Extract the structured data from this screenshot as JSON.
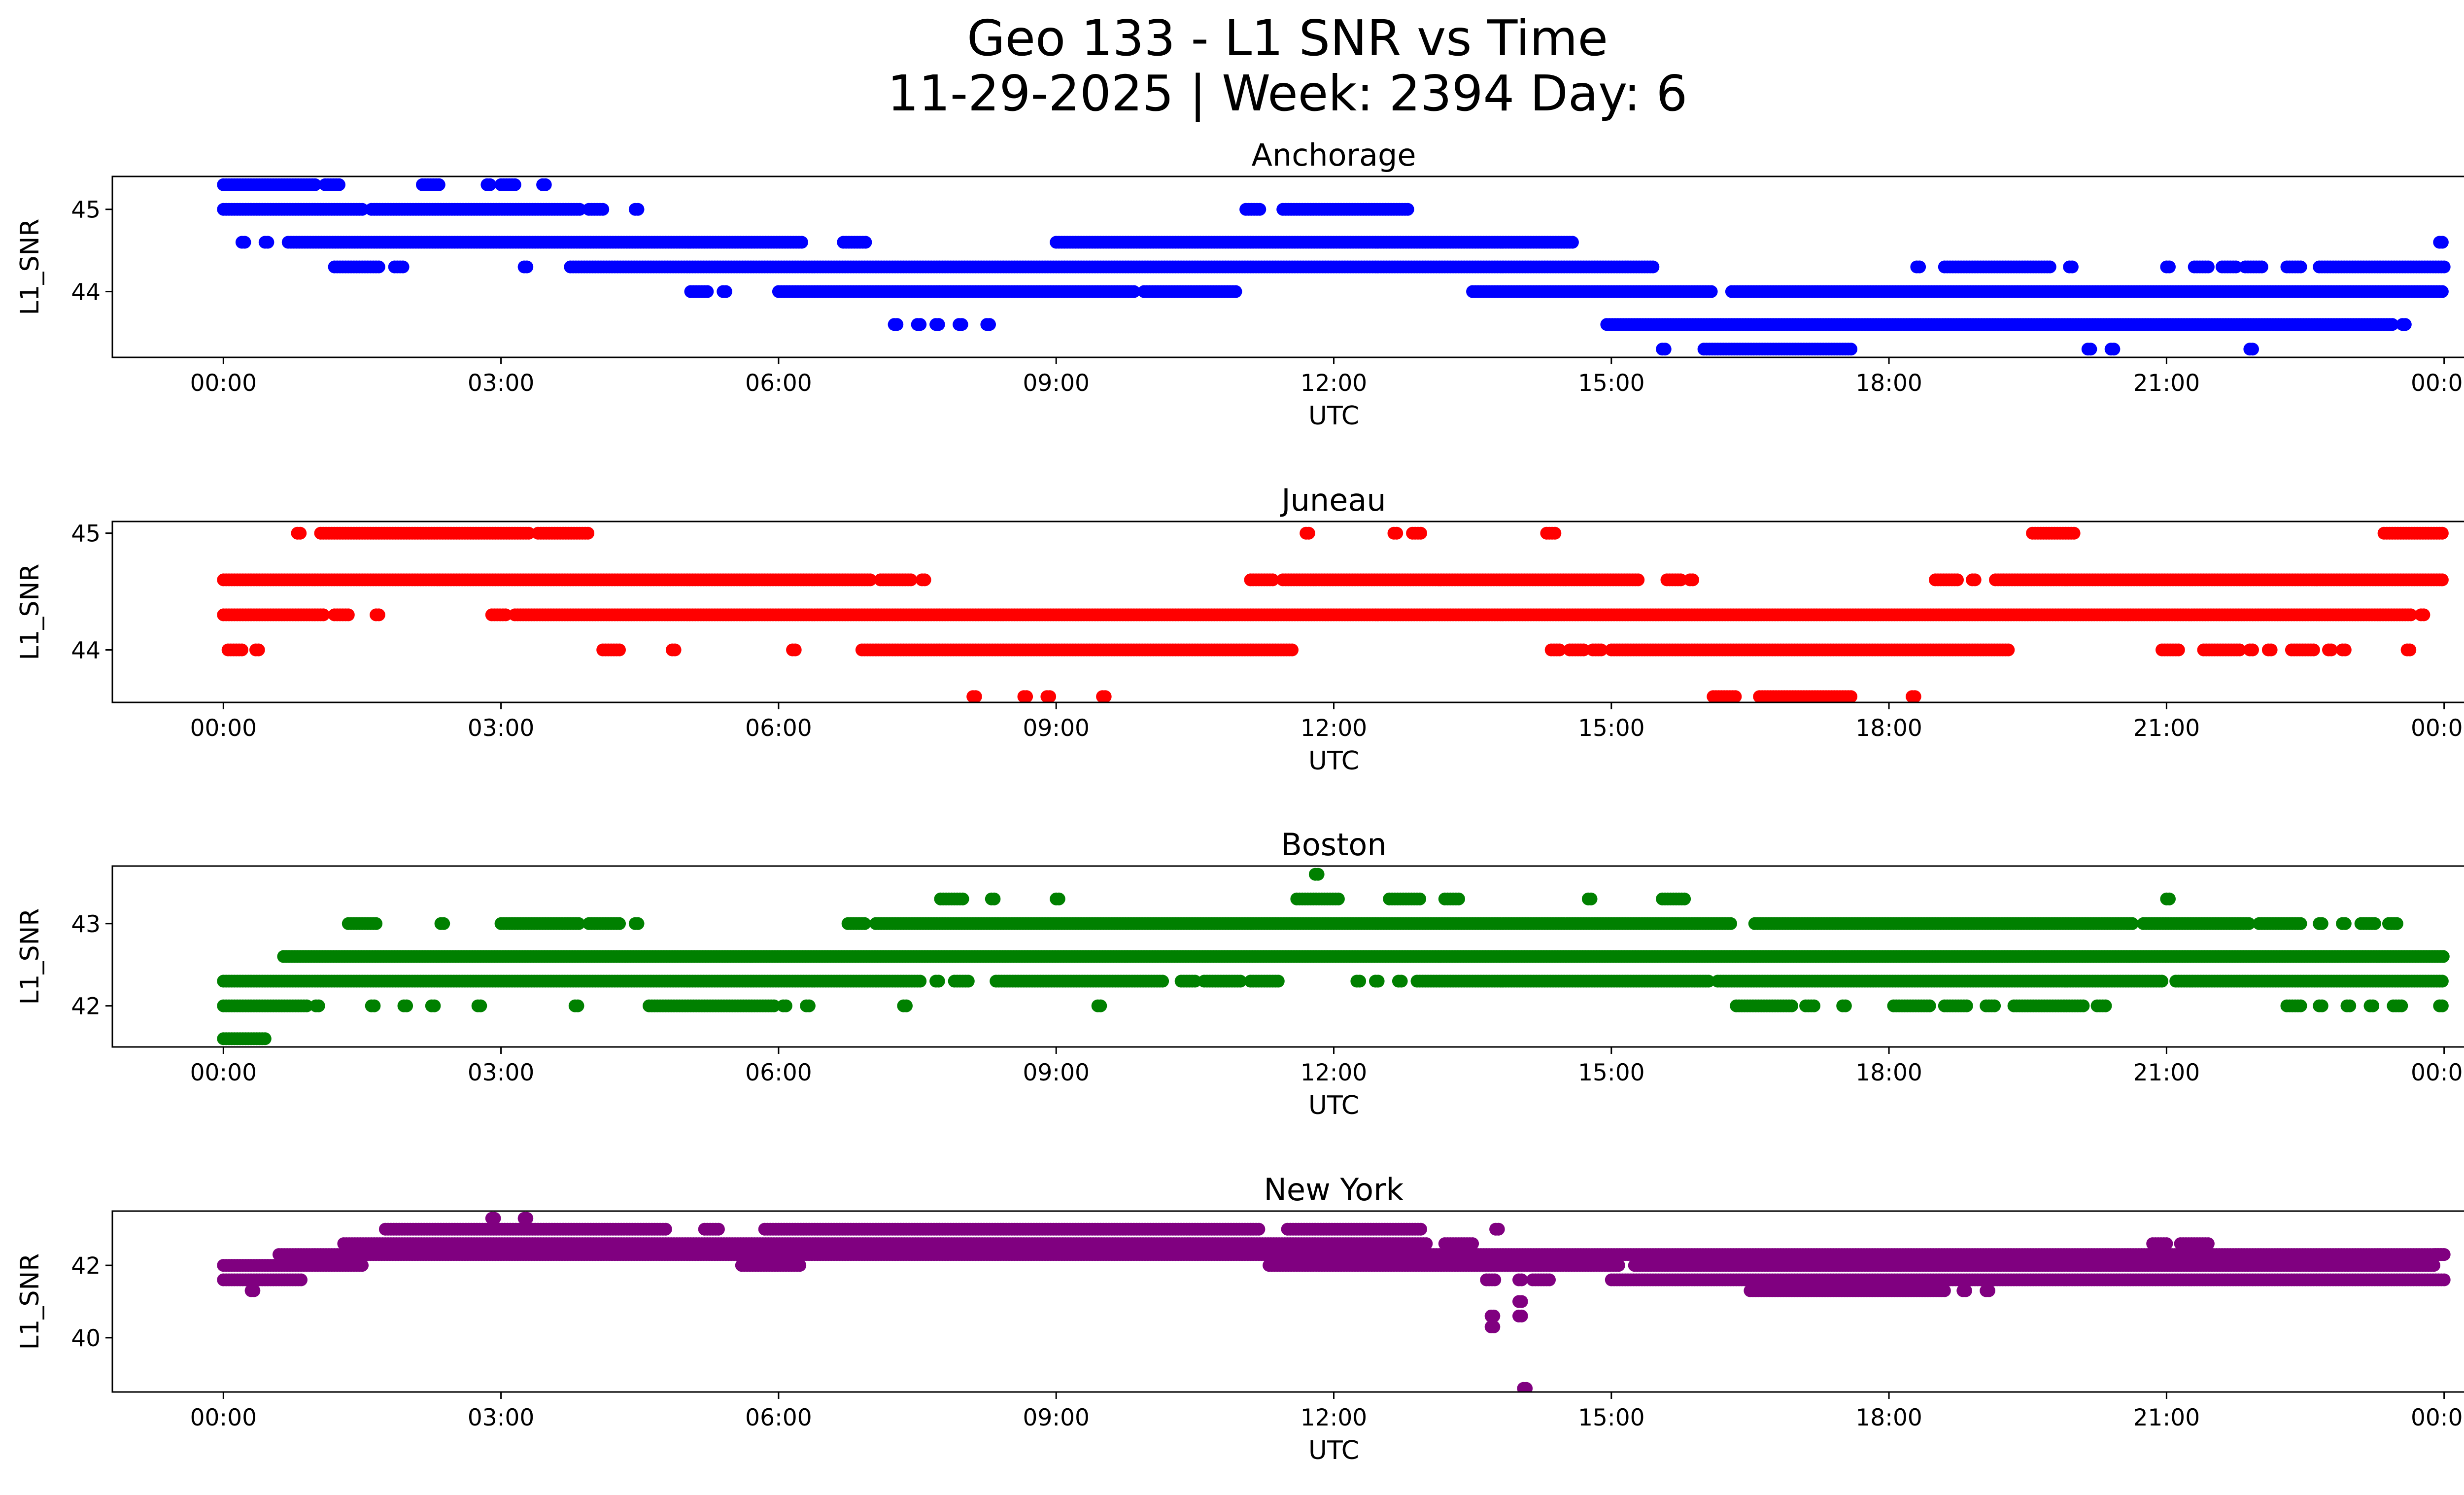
{
  "figure": {
    "title_line1": "Geo 133 - L1 SNR vs Time",
    "title_line2": "11-29-2025 | Week: 2394 Day: 6"
  },
  "chart_data": [
    {
      "type": "scatter",
      "title": "Anchorage",
      "xlabel": "UTC",
      "ylabel": "L1_SNR",
      "color": "#0000ff",
      "xlim_hours": [
        -1.2,
        25.2
      ],
      "ylim": [
        43.2,
        45.4
      ],
      "xticks": [
        "00:00",
        "03:00",
        "06:00",
        "09:00",
        "12:00",
        "15:00",
        "18:00",
        "21:00",
        "00:00"
      ],
      "yticks": [
        44,
        45
      ],
      "levels": [
        43.3,
        43.6,
        44.0,
        44.3,
        44.6,
        45.0,
        45.3
      ],
      "series": [
        {
          "level": 45.3,
          "runs": [
            [
              0.0,
              1.0
            ],
            [
              1.1,
              1.25
            ],
            [
              2.15,
              2.35
            ],
            [
              2.85,
              2.9
            ],
            [
              3.0,
              3.15
            ],
            [
              3.45,
              3.5
            ]
          ]
        },
        {
          "level": 45.0,
          "runs": [
            [
              0.0,
              1.5
            ],
            [
              1.6,
              3.85
            ],
            [
              3.95,
              4.1
            ],
            [
              4.45,
              4.5
            ],
            [
              11.05,
              11.2
            ],
            [
              11.45,
              12.8
            ]
          ]
        },
        {
          "level": 44.6,
          "runs": [
            [
              0.2,
              0.25
            ],
            [
              0.45,
              0.5
            ],
            [
              0.7,
              6.25
            ],
            [
              6.7,
              6.95
            ],
            [
              9.0,
              14.6
            ]
          ]
        },
        {
          "level": 44.3,
          "runs": [
            [
              1.2,
              1.7
            ],
            [
              1.85,
              1.95
            ],
            [
              3.25,
              3.3
            ],
            [
              3.75,
              15.45
            ],
            [
              18.3,
              18.35
            ],
            [
              18.6,
              19.75
            ],
            [
              19.95,
              20.0
            ],
            [
              21.0,
              21.05
            ],
            [
              21.3,
              21.45
            ],
            [
              21.6,
              21.75
            ],
            [
              21.85,
              22.05
            ],
            [
              22.3,
              22.45
            ],
            [
              22.65,
              24.0
            ]
          ]
        },
        {
          "level": 44.0,
          "runs": [
            [
              5.05,
              5.25
            ],
            [
              5.4,
              5.45
            ],
            [
              6.0,
              9.85
            ],
            [
              9.95,
              10.95
            ],
            [
              13.5,
              16.1
            ],
            [
              16.3,
              24.0
            ]
          ]
        },
        {
          "level": 43.6,
          "runs": [
            [
              7.25,
              7.3
            ],
            [
              7.5,
              7.55
            ],
            [
              7.7,
              7.75
            ],
            [
              7.95,
              8.0
            ],
            [
              8.25,
              8.3
            ],
            [
              14.95,
              23.45
            ],
            [
              23.55,
              23.6
            ]
          ]
        },
        {
          "level": 43.3,
          "runs": [
            [
              15.55,
              15.6
            ],
            [
              16.0,
              17.6
            ],
            [
              20.15,
              20.2
            ],
            [
              20.4,
              20.45
            ],
            [
              21.9,
              21.95
            ]
          ]
        },
        {
          "level": 44.6,
          "runs": [
            [
              23.95,
              24.0
            ]
          ]
        }
      ]
    },
    {
      "type": "scatter",
      "title": "Juneau",
      "xlabel": "UTC",
      "ylabel": "L1_SNR",
      "color": "#ff0000",
      "xlim_hours": [
        -1.2,
        25.2
      ],
      "ylim": [
        43.55,
        45.1
      ],
      "xticks": [
        "00:00",
        "03:00",
        "06:00",
        "09:00",
        "12:00",
        "15:00",
        "18:00",
        "21:00",
        "00:00"
      ],
      "yticks": [
        44,
        45
      ],
      "levels": [
        43.6,
        44.0,
        44.3,
        44.6,
        45.0
      ],
      "series": [
        {
          "level": 45.0,
          "runs": [
            [
              0.8,
              0.85
            ],
            [
              1.05,
              3.3
            ],
            [
              3.4,
              3.95
            ],
            [
              11.7,
              11.75
            ],
            [
              12.65,
              12.7
            ],
            [
              12.85,
              12.95
            ],
            [
              14.3,
              14.4
            ],
            [
              19.55,
              20.0
            ],
            [
              23.35,
              24.0
            ]
          ]
        },
        {
          "level": 44.6,
          "runs": [
            [
              0.0,
              7.0
            ],
            [
              7.1,
              7.45
            ],
            [
              7.55,
              7.6
            ],
            [
              11.1,
              11.35
            ],
            [
              11.45,
              15.3
            ],
            [
              15.6,
              15.75
            ],
            [
              15.85,
              15.9
            ],
            [
              18.5,
              18.75
            ],
            [
              18.9,
              18.95
            ],
            [
              19.15,
              24.0
            ]
          ]
        },
        {
          "level": 44.3,
          "runs": [
            [
              0.0,
              1.1
            ],
            [
              1.2,
              1.35
            ],
            [
              1.65,
              1.7
            ],
            [
              2.9,
              3.05
            ],
            [
              3.15,
              23.65
            ],
            [
              23.75,
              23.8
            ]
          ]
        },
        {
          "level": 44.0,
          "runs": [
            [
              0.05,
              0.2
            ],
            [
              0.35,
              0.4
            ],
            [
              4.1,
              4.3
            ],
            [
              4.85,
              4.9
            ],
            [
              6.15,
              6.2
            ],
            [
              6.9,
              11.55
            ],
            [
              14.35,
              14.45
            ],
            [
              14.55,
              14.7
            ],
            [
              14.8,
              14.9
            ],
            [
              15.0,
              19.3
            ],
            [
              20.95,
              21.15
            ],
            [
              21.4,
              21.8
            ],
            [
              21.9,
              21.95
            ],
            [
              22.1,
              22.15
            ],
            [
              22.35,
              22.6
            ],
            [
              22.75,
              22.8
            ],
            [
              22.9,
              22.95
            ],
            [
              23.6,
              23.65
            ]
          ]
        },
        {
          "level": 43.6,
          "runs": [
            [
              8.1,
              8.15
            ],
            [
              8.65,
              8.7
            ],
            [
              8.9,
              8.95
            ],
            [
              9.5,
              9.55
            ],
            [
              16.1,
              16.35
            ],
            [
              16.6,
              17.6
            ],
            [
              18.25,
              18.3
            ]
          ]
        }
      ]
    },
    {
      "type": "scatter",
      "title": "Boston",
      "xlabel": "UTC",
      "ylabel": "L1_SNR",
      "color": "#008000",
      "xlim_hours": [
        -1.2,
        25.2
      ],
      "ylim": [
        41.5,
        43.7
      ],
      "xticks": [
        "00:00",
        "03:00",
        "06:00",
        "09:00",
        "12:00",
        "15:00",
        "18:00",
        "21:00",
        "00:00"
      ],
      "yticks": [
        42,
        43
      ],
      "levels": [
        41.6,
        42.0,
        42.3,
        42.6,
        43.0,
        43.3,
        43.6
      ],
      "series": [
        {
          "level": 43.6,
          "runs": [
            [
              11.8,
              11.85
            ]
          ]
        },
        {
          "level": 43.3,
          "runs": [
            [
              7.75,
              8.0
            ],
            [
              8.3,
              8.35
            ],
            [
              9.0,
              9.05
            ],
            [
              11.6,
              12.05
            ],
            [
              12.6,
              12.95
            ],
            [
              13.2,
              13.35
            ],
            [
              14.75,
              14.8
            ],
            [
              15.55,
              15.8
            ],
            [
              21.0,
              21.05
            ]
          ]
        },
        {
          "level": 43.0,
          "runs": [
            [
              1.35,
              1.65
            ],
            [
              2.35,
              2.4
            ],
            [
              3.0,
              3.85
            ],
            [
              3.95,
              4.3
            ],
            [
              4.45,
              4.5
            ],
            [
              6.75,
              6.95
            ],
            [
              7.05,
              16.3
            ],
            [
              16.55,
              20.65
            ],
            [
              20.75,
              21.9
            ],
            [
              22.0,
              22.45
            ],
            [
              22.65,
              22.7
            ],
            [
              22.9,
              22.95
            ],
            [
              23.1,
              23.25
            ],
            [
              23.4,
              23.5
            ]
          ]
        },
        {
          "level": 42.6,
          "runs": [
            [
              0.65,
              24.0
            ]
          ]
        },
        {
          "level": 42.3,
          "runs": [
            [
              0.0,
              7.55
            ],
            [
              7.7,
              7.75
            ],
            [
              7.9,
              8.05
            ],
            [
              8.35,
              10.15
            ],
            [
              10.35,
              10.5
            ],
            [
              10.6,
              11.0
            ],
            [
              11.1,
              11.4
            ],
            [
              12.25,
              12.3
            ],
            [
              12.45,
              12.5
            ],
            [
              12.7,
              12.75
            ],
            [
              12.9,
              16.05
            ],
            [
              16.15,
              20.95
            ],
            [
              21.1,
              24.0
            ]
          ]
        },
        {
          "level": 42.0,
          "runs": [
            [
              0.0,
              0.9
            ],
            [
              1.0,
              1.05
            ],
            [
              1.6,
              1.65
            ],
            [
              1.95,
              2.0
            ],
            [
              2.25,
              2.3
            ],
            [
              2.75,
              2.8
            ],
            [
              3.8,
              3.85
            ],
            [
              4.6,
              5.95
            ],
            [
              6.05,
              6.1
            ],
            [
              6.3,
              6.35
            ],
            [
              7.35,
              7.4
            ],
            [
              9.45,
              9.5
            ],
            [
              16.35,
              16.95
            ],
            [
              17.1,
              17.2
            ],
            [
              17.5,
              17.55
            ],
            [
              18.05,
              18.45
            ],
            [
              18.6,
              18.85
            ],
            [
              19.05,
              19.15
            ],
            [
              19.35,
              20.1
            ],
            [
              20.25,
              20.35
            ],
            [
              22.3,
              22.45
            ],
            [
              22.65,
              22.7
            ],
            [
              22.95,
              23.0
            ],
            [
              23.2,
              23.25
            ],
            [
              23.45,
              23.55
            ],
            [
              23.95,
              24.0
            ]
          ]
        },
        {
          "level": 41.6,
          "runs": [
            [
              0.0,
              0.45
            ]
          ]
        }
      ]
    },
    {
      "type": "scatter",
      "title": "New York",
      "xlabel": "UTC",
      "ylabel": "L1_SNR",
      "color": "#800080",
      "xlim_hours": [
        -1.2,
        25.2
      ],
      "ylim": [
        38.5,
        43.5
      ],
      "xticks": [
        "00:00",
        "03:00",
        "06:00",
        "09:00",
        "12:00",
        "15:00",
        "18:00",
        "21:00",
        "00:00"
      ],
      "yticks": [
        40,
        42
      ],
      "levels": [
        38.6,
        40.3,
        40.6,
        41.0,
        41.3,
        41.6,
        42.0,
        42.3,
        42.6,
        43.0,
        43.3
      ],
      "series": [
        {
          "level": 42.0,
          "runs": [
            [
              0.0,
              1.5
            ]
          ]
        },
        {
          "level": 41.6,
          "runs": [
            [
              0.0,
              0.85
            ],
            [
              15.0,
              24.0
            ]
          ]
        },
        {
          "level": 41.3,
          "runs": [
            [
              0.3,
              0.35
            ]
          ]
        },
        {
          "level": 42.3,
          "runs": [
            [
              0.6,
              24.0
            ]
          ]
        },
        {
          "level": 42.6,
          "runs": [
            [
              1.3,
              13.0
            ],
            [
              13.2,
              13.5
            ]
          ]
        },
        {
          "level": 43.0,
          "runs": [
            [
              1.75,
              4.8
            ],
            [
              5.2,
              5.35
            ],
            [
              5.85,
              11.2
            ],
            [
              11.5,
              12.95
            ],
            [
              13.75,
              13.8
            ]
          ]
        },
        {
          "level": 43.3,
          "runs": [
            [
              2.9,
              2.95
            ],
            [
              3.25,
              3.3
            ]
          ]
        },
        {
          "level": 42.0,
          "runs": [
            [
              5.6,
              6.25
            ],
            [
              11.3,
              15.1
            ],
            [
              15.25,
              23.9
            ]
          ]
        },
        {
          "level": 41.6,
          "runs": [
            [
              13.65,
              13.75
            ],
            [
              14.0,
              14.05
            ],
            [
              14.15,
              14.35
            ]
          ]
        },
        {
          "level": 41.3,
          "runs": [
            [
              16.5,
              18.6
            ],
            [
              18.8,
              18.85
            ],
            [
              19.05,
              19.1
            ]
          ]
        },
        {
          "level": 41.0,
          "runs": [
            [
              14.0,
              14.05
            ]
          ]
        },
        {
          "level": 40.6,
          "runs": [
            [
              13.7,
              13.75
            ],
            [
              14.0,
              14.05
            ]
          ]
        },
        {
          "level": 40.3,
          "runs": [
            [
              13.7,
              13.75
            ]
          ]
        },
        {
          "level": 38.6,
          "runs": [
            [
              14.05,
              14.1
            ]
          ]
        },
        {
          "level": 42.6,
          "runs": [
            [
              20.85,
              21.0
            ],
            [
              21.15,
              21.45
            ]
          ]
        },
        {
          "level": 42.3,
          "runs": [
            [
              23.9,
              24.0
            ]
          ]
        }
      ]
    }
  ]
}
